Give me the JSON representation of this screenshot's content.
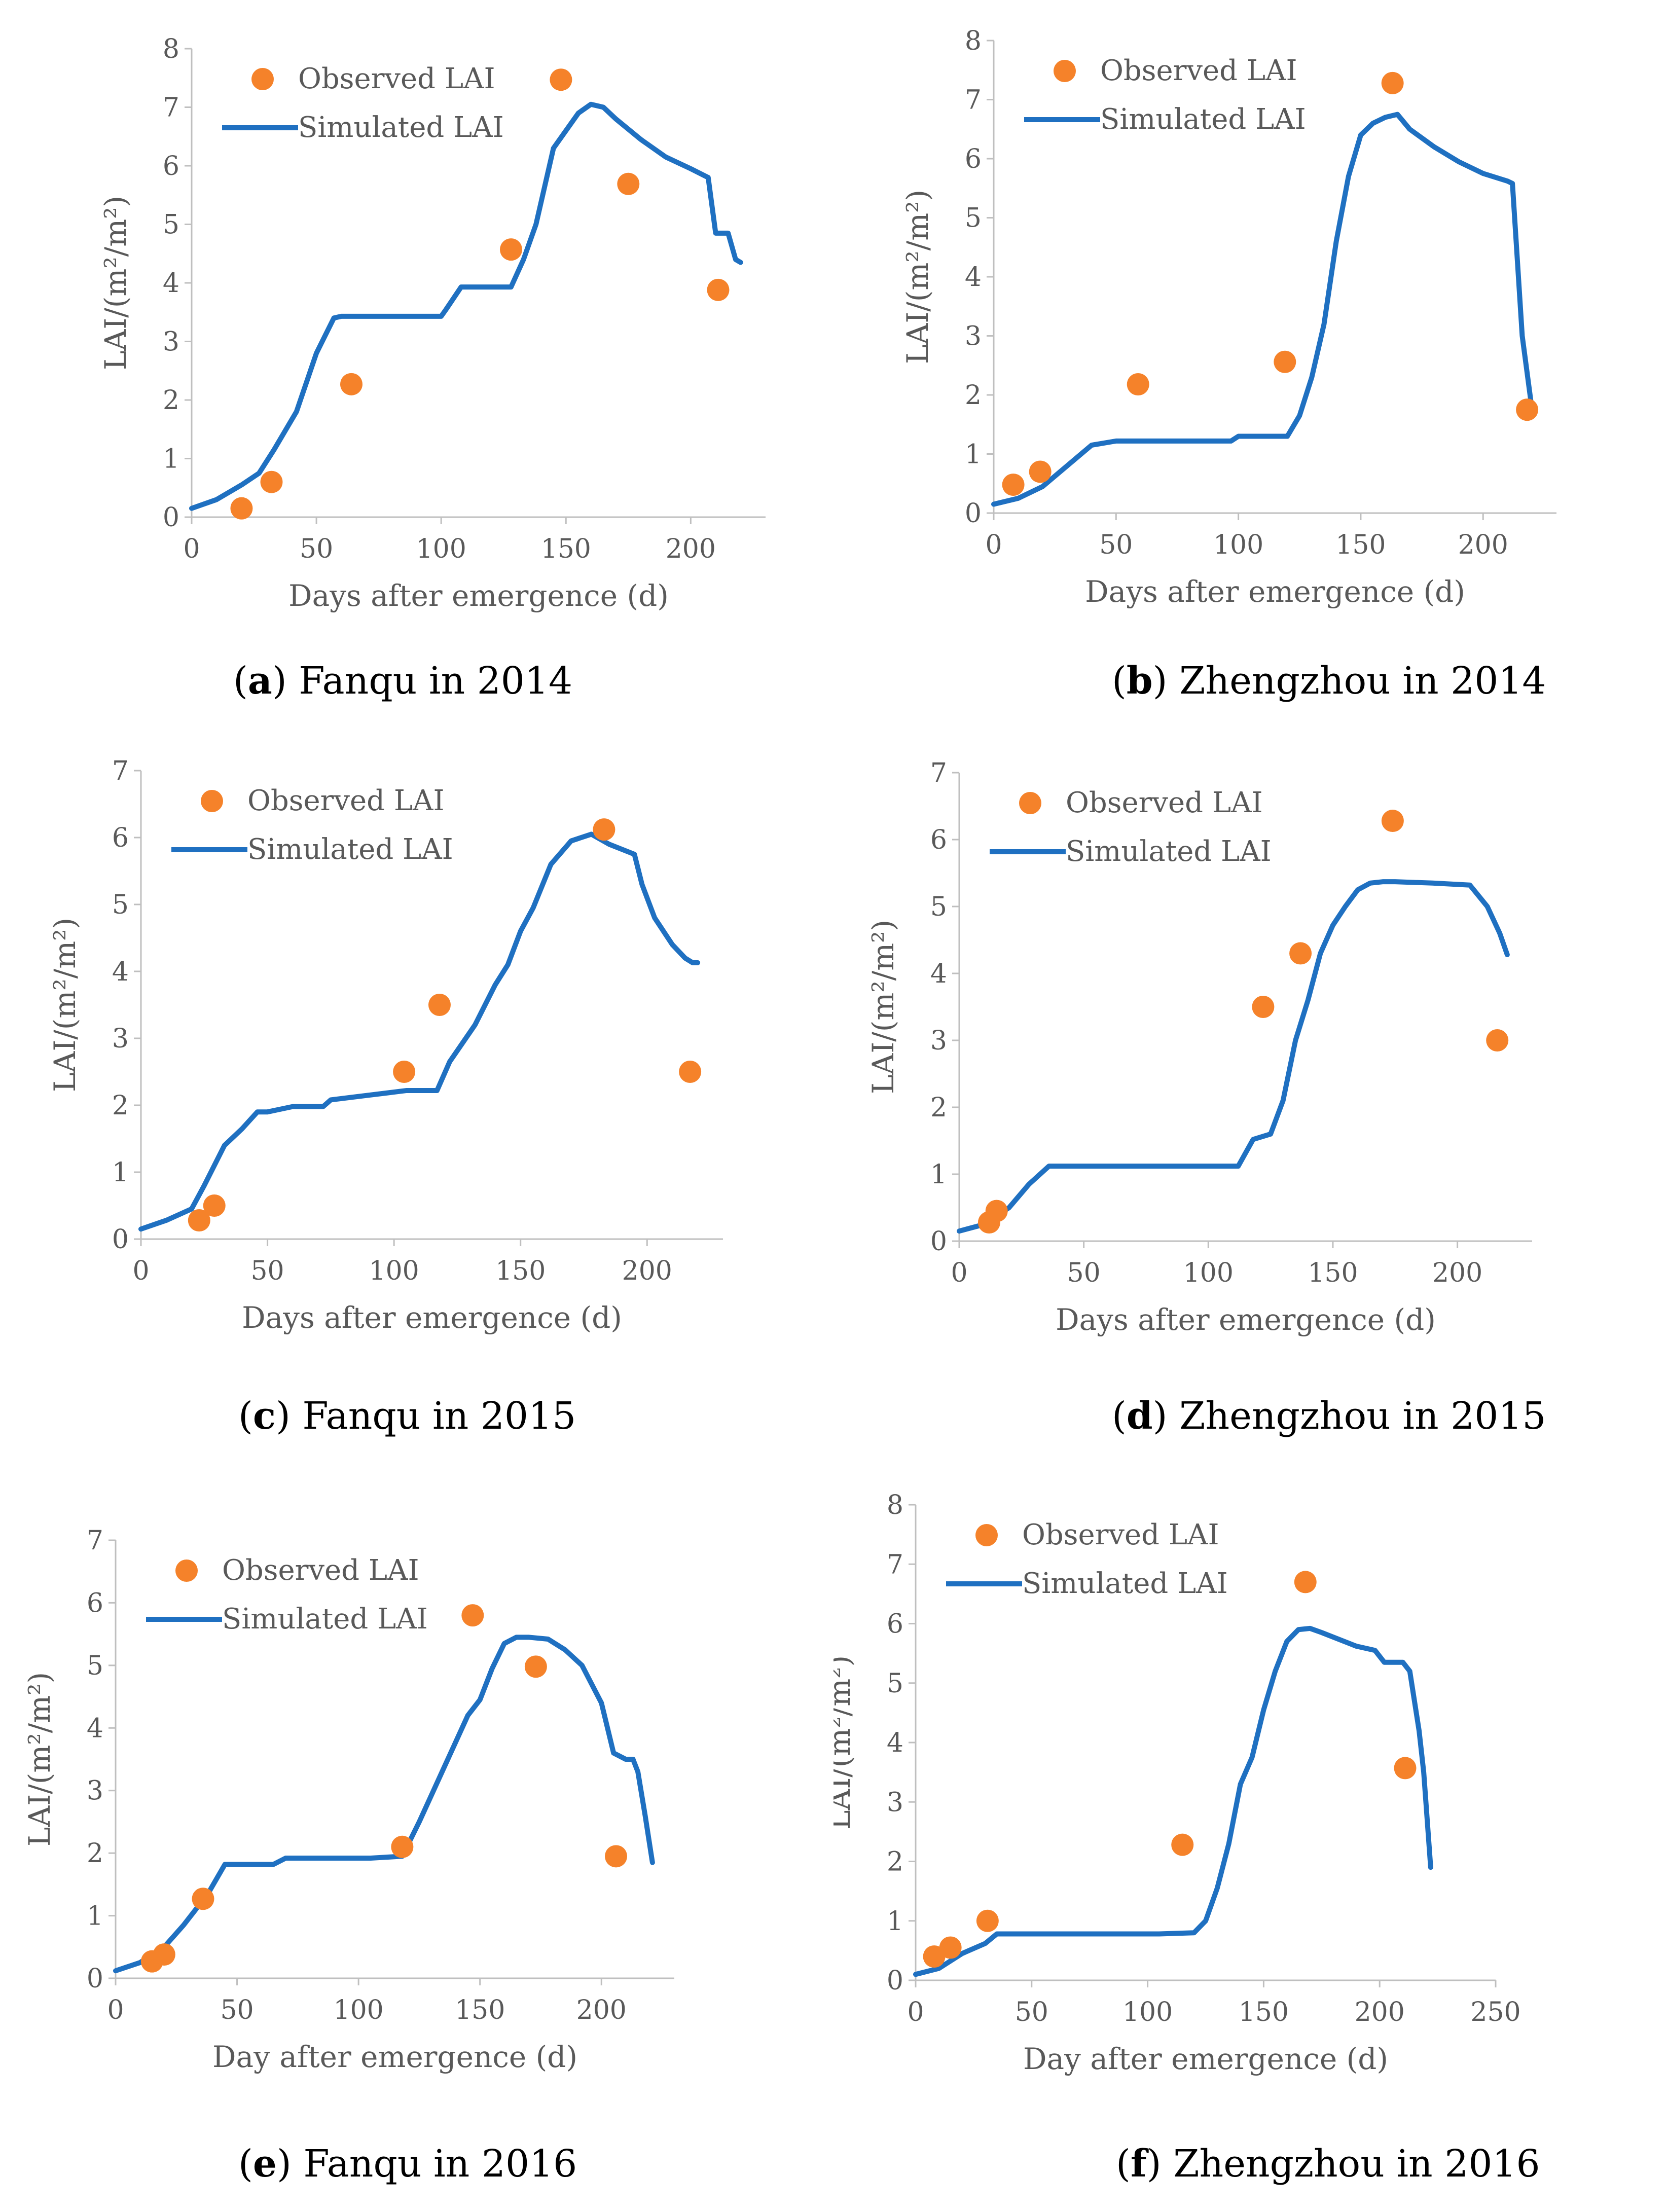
{
  "colors": {
    "observed": "#F5822A",
    "simulated": "#1F70C1",
    "axis": "#BFBFBF",
    "text": "#595959"
  },
  "chart_data": [
    {
      "id": "a",
      "type": "scatter+line",
      "caption_letter": "a",
      "caption_text": " Fanqu in 2014",
      "xlabel": "Days after emergence (d)",
      "ylabel": "LAI/(m²/m²)",
      "xlim": [
        0,
        230
      ],
      "ylim": [
        0,
        8
      ],
      "xticks": [
        0,
        50,
        100,
        150,
        200
      ],
      "yticks": [
        0,
        1,
        2,
        3,
        4,
        5,
        6,
        7,
        8
      ],
      "legend": {
        "observed": "Observed LAI",
        "simulated": "Simulated LAI"
      },
      "observed": {
        "x": [
          20,
          32,
          64,
          128,
          148,
          175,
          211
        ],
        "y": [
          0.15,
          0.6,
          2.27,
          4.57,
          7.47,
          5.69,
          3.88
        ]
      },
      "simulated": {
        "x": [
          0,
          10,
          20,
          27,
          33,
          42,
          50,
          57,
          60,
          70,
          90,
          100,
          102,
          108,
          116,
          128,
          133,
          138,
          145,
          150,
          155,
          160,
          165,
          170,
          180,
          190,
          200,
          207,
          210,
          215,
          218,
          220
        ],
        "y": [
          0.15,
          0.3,
          0.55,
          0.75,
          1.15,
          1.8,
          2.8,
          3.4,
          3.43,
          3.43,
          3.43,
          3.43,
          3.55,
          3.93,
          3.93,
          3.93,
          4.4,
          5.0,
          6.3,
          6.6,
          6.9,
          7.05,
          7.0,
          6.8,
          6.45,
          6.15,
          5.95,
          5.8,
          4.85,
          4.85,
          4.4,
          4.35
        ]
      }
    },
    {
      "id": "b",
      "type": "scatter+line",
      "caption_letter": "b",
      "caption_text": " Zhengzhou in 2014",
      "xlabel": "Days after emergence (d)",
      "ylabel": "LAI/(m²/m²)",
      "xlim": [
        0,
        230
      ],
      "ylim": [
        0,
        8
      ],
      "xticks": [
        0,
        50,
        100,
        150,
        200
      ],
      "yticks": [
        0,
        1,
        2,
        3,
        4,
        5,
        6,
        7,
        8
      ],
      "legend": {
        "observed": "Observed LAI",
        "simulated": "Simulated LAI"
      },
      "observed": {
        "x": [
          8,
          19,
          59,
          119,
          163,
          218
        ],
        "y": [
          0.48,
          0.7,
          2.18,
          2.56,
          7.28,
          1.75
        ]
      },
      "simulated": {
        "x": [
          0,
          10,
          20,
          30,
          40,
          50,
          60,
          80,
          97,
          100,
          110,
          120,
          125,
          130,
          135,
          140,
          145,
          150,
          155,
          160,
          165,
          170,
          180,
          190,
          200,
          210,
          212,
          216,
          220
        ],
        "y": [
          0.15,
          0.25,
          0.45,
          0.8,
          1.15,
          1.22,
          1.22,
          1.22,
          1.22,
          1.3,
          1.3,
          1.3,
          1.65,
          2.3,
          3.2,
          4.6,
          5.7,
          6.4,
          6.6,
          6.7,
          6.75,
          6.5,
          6.2,
          5.95,
          5.75,
          5.62,
          5.58,
          3.0,
          1.75
        ]
      }
    },
    {
      "id": "c",
      "type": "scatter+line",
      "caption_letter": "c",
      "caption_text": " Fanqu in 2015",
      "xlabel": "Days after emergence (d)",
      "ylabel": "LAI/(m²/m²)",
      "xlim": [
        0,
        230
      ],
      "ylim": [
        0,
        7
      ],
      "xticks": [
        0,
        50,
        100,
        150,
        200
      ],
      "yticks": [
        0,
        1,
        2,
        3,
        4,
        5,
        6,
        7
      ],
      "legend": {
        "observed": "Observed LAI",
        "simulated": "Simulated LAI"
      },
      "observed": {
        "x": [
          23,
          29,
          104,
          118,
          183,
          217
        ],
        "y": [
          0.28,
          0.5,
          2.5,
          3.5,
          6.12,
          2.5
        ]
      },
      "simulated": {
        "x": [
          0,
          10,
          20,
          25,
          33,
          40,
          46,
          50,
          60,
          72,
          75,
          90,
          105,
          117,
          122,
          132,
          140,
          145,
          150,
          155,
          162,
          170,
          178,
          185,
          195,
          198,
          203,
          210,
          215,
          218,
          220
        ],
        "y": [
          0.15,
          0.28,
          0.45,
          0.8,
          1.4,
          1.65,
          1.9,
          1.9,
          1.98,
          1.98,
          2.08,
          2.15,
          2.22,
          2.22,
          2.65,
          3.2,
          3.8,
          4.1,
          4.6,
          4.95,
          5.6,
          5.95,
          6.05,
          5.9,
          5.75,
          5.3,
          4.8,
          4.4,
          4.2,
          4.13,
          4.13
        ]
      }
    },
    {
      "id": "d",
      "type": "scatter+line",
      "caption_letter": "d",
      "caption_text": " Zhengzhou in 2015",
      "xlabel": "Days after emergence (d)",
      "ylabel": "LAI/(m²/m²)",
      "xlim": [
        0,
        230
      ],
      "ylim": [
        0,
        7
      ],
      "xticks": [
        0,
        50,
        100,
        150,
        200
      ],
      "yticks": [
        0,
        1,
        2,
        3,
        4,
        5,
        6,
        7
      ],
      "legend": {
        "observed": "Observed LAI",
        "simulated": "Simulated LAI"
      },
      "observed": {
        "x": [
          12,
          15,
          122,
          137,
          174,
          216
        ],
        "y": [
          0.28,
          0.45,
          3.5,
          4.3,
          6.28,
          3.0
        ]
      },
      "simulated": {
        "x": [
          0,
          10,
          20,
          28,
          36,
          50,
          80,
          112,
          118,
          125,
          130,
          135,
          140,
          145,
          150,
          155,
          160,
          165,
          170,
          175,
          190,
          205,
          212,
          217,
          220
        ],
        "y": [
          0.15,
          0.25,
          0.5,
          0.85,
          1.12,
          1.12,
          1.12,
          1.12,
          1.52,
          1.6,
          2.1,
          3.0,
          3.6,
          4.3,
          4.72,
          5.0,
          5.25,
          5.35,
          5.37,
          5.37,
          5.35,
          5.32,
          5.0,
          4.6,
          4.28
        ]
      }
    },
    {
      "id": "e",
      "type": "scatter+line",
      "caption_letter": "e",
      "caption_text": " Fanqu in 2016",
      "xlabel": "Day after emergence (d)",
      "ylabel": "LAI/(m²/m²)",
      "xlim": [
        0,
        230
      ],
      "ylim": [
        0,
        7
      ],
      "xticks": [
        0,
        50,
        100,
        150,
        200
      ],
      "yticks": [
        0,
        1,
        2,
        3,
        4,
        5,
        6,
        7
      ],
      "legend": {
        "observed": "Observed LAI",
        "simulated": "Simulated LAI"
      },
      "observed": {
        "x": [
          15,
          20,
          36,
          118,
          147,
          173,
          206
        ],
        "y": [
          0.27,
          0.38,
          1.27,
          2.1,
          5.8,
          4.98,
          1.95
        ]
      },
      "simulated": {
        "x": [
          0,
          10,
          20,
          28,
          38,
          45,
          50,
          65,
          70,
          90,
          105,
          118,
          125,
          135,
          145,
          150,
          155,
          160,
          165,
          170,
          178,
          185,
          192,
          200,
          205,
          210,
          213,
          215,
          218,
          221
        ],
        "y": [
          0.12,
          0.25,
          0.5,
          0.85,
          1.35,
          1.82,
          1.82,
          1.82,
          1.92,
          1.92,
          1.92,
          1.95,
          2.5,
          3.35,
          4.2,
          4.45,
          4.95,
          5.35,
          5.45,
          5.45,
          5.42,
          5.25,
          5.0,
          4.4,
          3.6,
          3.5,
          3.5,
          3.3,
          2.6,
          1.85
        ]
      }
    },
    {
      "id": "f",
      "type": "scatter+line",
      "caption_letter": "f",
      "caption_text": " Zhengzhou in 2016",
      "xlabel": "Day after emergence (d)",
      "ylabel": "LAI/(m²/m²)",
      "xlim": [
        0,
        250
      ],
      "ylim": [
        0,
        8
      ],
      "xticks": [
        0,
        50,
        100,
        150,
        200,
        250
      ],
      "yticks": [
        0,
        1,
        2,
        3,
        4,
        5,
        6,
        7,
        8
      ],
      "legend": {
        "observed": "Observed LAI",
        "simulated": "Simulated LAI"
      },
      "observed": {
        "x": [
          8,
          15,
          31,
          115,
          168,
          211
        ],
        "y": [
          0.4,
          0.55,
          1.0,
          2.28,
          6.7,
          3.57
        ]
      },
      "simulated": {
        "x": [
          0,
          10,
          20,
          30,
          35,
          50,
          80,
          105,
          120,
          125,
          130,
          135,
          140,
          145,
          150,
          155,
          160,
          165,
          170,
          175,
          190,
          198,
          202,
          210,
          213,
          217,
          219,
          222
        ],
        "y": [
          0.1,
          0.2,
          0.45,
          0.62,
          0.78,
          0.78,
          0.78,
          0.78,
          0.8,
          1.0,
          1.55,
          2.3,
          3.3,
          3.75,
          4.55,
          5.2,
          5.7,
          5.9,
          5.92,
          5.85,
          5.62,
          5.55,
          5.35,
          5.35,
          5.2,
          4.2,
          3.5,
          1.9
        ]
      }
    }
  ]
}
